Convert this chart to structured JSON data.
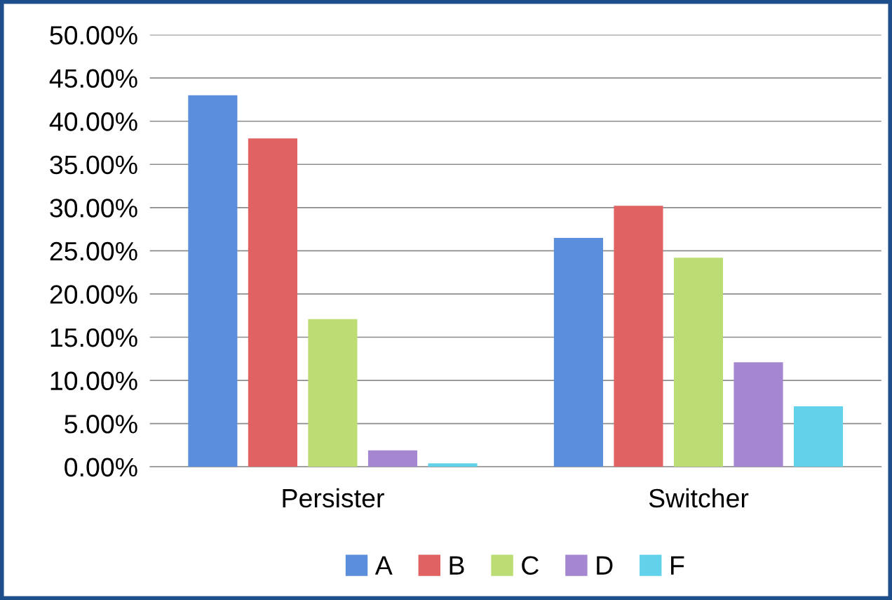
{
  "chart_data": {
    "type": "bar",
    "categories": [
      "Persister",
      "Switcher"
    ],
    "series": [
      {
        "name": "A",
        "color": "#5b8fdc",
        "values": [
          43.0,
          26.5
        ]
      },
      {
        "name": "B",
        "color": "#e06262",
        "values": [
          38.0,
          30.2
        ]
      },
      {
        "name": "C",
        "color": "#bcdc74",
        "values": [
          17.1,
          24.2
        ]
      },
      {
        "name": "D",
        "color": "#a487d0",
        "values": [
          1.9,
          12.1
        ]
      },
      {
        "name": "F",
        "color": "#62d2ea",
        "values": [
          0.4,
          7.0
        ]
      }
    ],
    "ylim": [
      0,
      50
    ],
    "yticks": [
      {
        "value": 0,
        "label": "0.00%"
      },
      {
        "value": 5,
        "label": "5.00%"
      },
      {
        "value": 10,
        "label": "10.00%"
      },
      {
        "value": 15,
        "label": "15.00%"
      },
      {
        "value": 20,
        "label": "20.00%"
      },
      {
        "value": 25,
        "label": "25.00%"
      },
      {
        "value": 30,
        "label": "30.00%"
      },
      {
        "value": 35,
        "label": "35.00%"
      },
      {
        "value": 40,
        "label": "40.00%"
      },
      {
        "value": 45,
        "label": "45.00%"
      },
      {
        "value": 50,
        "label": "50.00%"
      }
    ],
    "grid": "y",
    "legend": "bottom"
  }
}
